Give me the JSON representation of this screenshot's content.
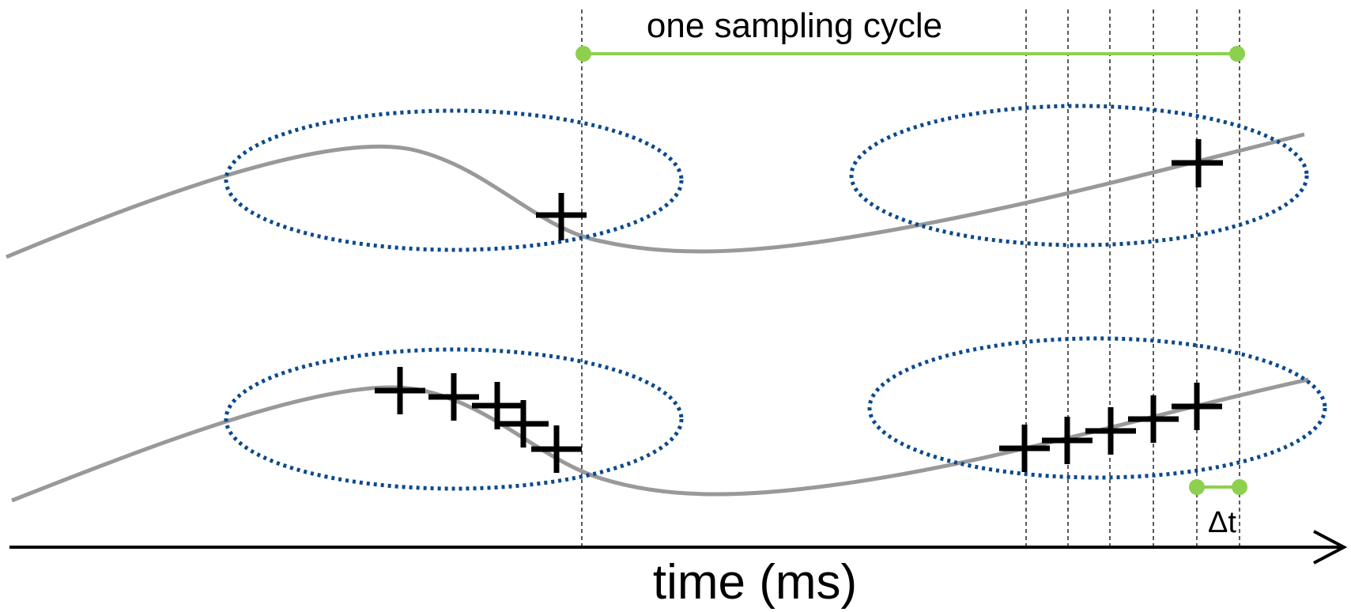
{
  "labels": {
    "sampling_cycle": "one sampling cycle",
    "delta_t": "Δt",
    "x_axis": "time (ms)"
  },
  "colors": {
    "signal_curve": "#999999",
    "highlight_ellipse": "#0b4a8c",
    "time_span_marker": "#8dd04f",
    "sample_marker": "#000000"
  },
  "icons": {
    "sample_marker": "plus-cross",
    "time_axis_end": "arrow-right"
  }
}
